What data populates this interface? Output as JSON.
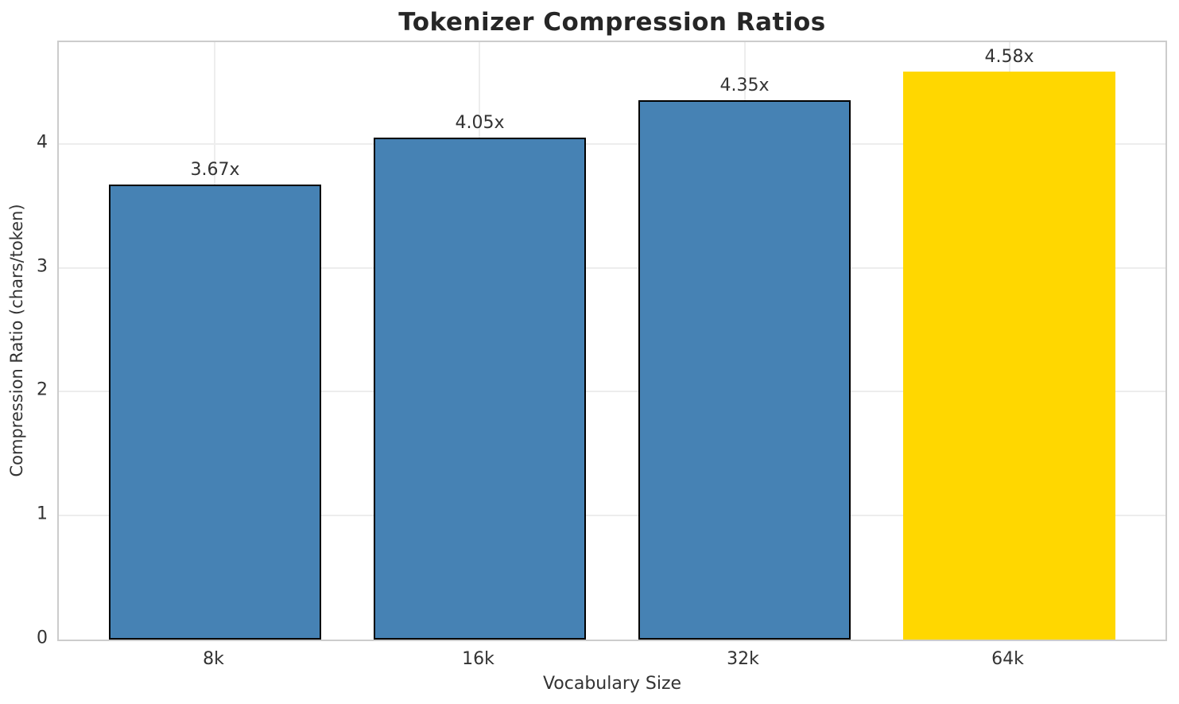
{
  "chart_data": {
    "type": "bar",
    "title": "Tokenizer Compression Ratios",
    "xlabel": "Vocabulary Size",
    "ylabel": "Compression Ratio (chars/token)",
    "categories": [
      "8k",
      "16k",
      "32k",
      "64k"
    ],
    "values": [
      3.67,
      4.05,
      4.35,
      4.58
    ],
    "value_labels": [
      "3.67x",
      "4.05x",
      "4.35x",
      "4.58x"
    ],
    "yticks": [
      0,
      1,
      2,
      3,
      4
    ],
    "ylim": [
      0,
      4.82
    ],
    "grid": "on",
    "legend": "none",
    "bar_colors": [
      "#4682B4",
      "#4682B4",
      "#4682B4",
      "#FFD700"
    ],
    "bar_edge_colors": [
      "#000000",
      "#000000",
      "#000000",
      "none"
    ],
    "series_color": "#4682B4",
    "highlight_color": "#FFD700"
  }
}
